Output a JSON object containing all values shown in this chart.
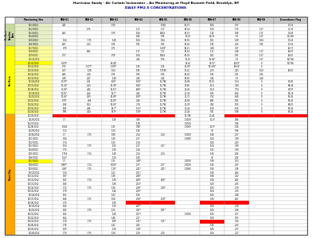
{
  "title1": "Hurricane Sandy - Air Curtain Incinerator – Air Monitoring at Floyd Bennett Field, Brooklyn, NY",
  "title3": "DAILY PM2.5 CONCENTRATIONS",
  "col_headers": [
    "Monitoring Site",
    "FBB-01",
    "FBB-02",
    "FBB-03",
    "FBB-04",
    "FBB-05",
    "FBB-06",
    "FBB-07",
    "FBB-08",
    "FBB-09",
    "Exceedance Flag"
  ],
  "preburn_label": "Pre-Burn\nBaseline",
  "burnday_label": "Burn Day",
  "color_preburn_top": "#c8d9a0",
  "color_preburn_side": "#ffff99",
  "color_burnday_side": "#ffaa00",
  "color_header_bg": "#c8c8c8",
  "color_red": "#ff0000",
  "color_white": "#ffffff",
  "color_alt": "#f0f0f0",
  "preburn_count": 18,
  "rows": [
    [
      "11/7/2012",
      "0.70",
      "",
      "0.71",
      "",
      "1.303*",
      "60.11",
      "4.28",
      "3.07",
      "",
      "62.71"
    ],
    [
      "11/8/2012",
      "",
      "0.83",
      "",
      "1.17",
      "1.17",
      "67.14",
      "1.17",
      "1.48",
      "1.17",
      "62.63"
    ],
    [
      "11/9/2012",
      "3.57",
      "",
      "0.79",
      "1.84",
      "0.654",
      "67.39",
      "1.61",
      "1.91",
      "1.17",
      "62.63"
    ],
    [
      "11/10/2012",
      "",
      "",
      "",
      "3.26",
      "1.95",
      "10.47",
      "15.03*",
      "1.9",
      "1.17",
      "102.98"
    ],
    [
      "11/11/2012",
      "0.119*",
      "",
      "44.44*",
      "",
      "",
      "15.61",
      "36.75*",
      "29.63*",
      "0",
      "107.88"
    ],
    [
      "11/12/2012",
      "0.72",
      "1.377*",
      "1.397*",
      "1.26",
      "1.26",
      "15.03*",
      "103.48*",
      "25.64*",
      "0",
      ""
    ],
    [
      "11/13/2012",
      "3.27",
      "1.28",
      "1.54",
      "1.95",
      "1.7536",
      "70.22",
      "2.13",
      "2.43",
      "1.54",
      "62.63"
    ],
    [
      "11/14/2012",
      "0.85",
      "4.19",
      "0.76",
      "1.95",
      "1.95",
      "67.44",
      "1.95",
      "1.91",
      "1.95",
      ""
    ],
    [
      "11/15/2012",
      "4.78",
      "4.37",
      "1.49",
      "3.26",
      "3.26",
      "67.56",
      "3.26",
      "1.9",
      "3.26",
      ""
    ],
    [
      "11/16/2012",
      "40.07*",
      "4.11",
      "6.20*",
      "5.20*",
      "11.796",
      "22.88",
      "10.52",
      "7.54",
      "0",
      "92.46"
    ],
    [
      "11/17/2012",
      "13.36*",
      "4.13",
      "11.38*",
      "6.40*",
      "11.796",
      "23.66",
      "11.9",
      "7.44",
      "0",
      "88.44"
    ],
    [
      "11/18/2012",
      "31.83*",
      "4.45",
      "16.51*",
      "6.80*",
      "11.796",
      "22.45",
      "11.8",
      "7.74",
      "0",
      "91.97"
    ],
    [
      "11/19/2012",
      "10.55*",
      "4.64",
      "16.7*",
      "4.32",
      "11.796",
      "21.34",
      "9.35",
      "6.44",
      "0",
      "87.24"
    ],
    [
      "11/20/2012",
      "10.45*",
      "4.59",
      "14.94*",
      "6.19*",
      "11.796",
      "21.71",
      "7.32",
      "6.44",
      "0",
      "87.45"
    ],
    [
      "11/21/2012",
      "9.79*",
      "4.66",
      "16.08*",
      "4.16",
      "11.796",
      "22.88",
      "6.66",
      "6.95",
      "0",
      "87.45"
    ],
    [
      "11/22/2012",
      "9.26",
      "4.53",
      "13.81*",
      "3.74",
      "11.796",
      "21.28",
      "4.92",
      "5.55",
      "0",
      "86.82"
    ],
    [
      "11/23/2012",
      "9.69",
      "4.36",
      "14.7*",
      "5.13*",
      "11.796",
      "21.45",
      "6.10",
      "6.15",
      "0",
      "87.45"
    ],
    [
      "11/24/2012",
      "9.95",
      "4.44",
      "14.9*",
      "5.18*",
      "11.796",
      "21.44",
      "5.41",
      "5.48",
      "0",
      "87.45"
    ],
    [
      "11/25/2012",
      "R",
      "R",
      "R",
      "R",
      "R",
      "11.796",
      "21.44",
      "R",
      "R",
      "R"
    ],
    [
      "11/26/2012",
      "1.7",
      "",
      "1.49",
      "3.88",
      "",
      "1.3059",
      "11.4*",
      "4.96",
      "",
      ""
    ],
    [
      "11/27/2012",
      "",
      "",
      "",
      "1.38",
      "",
      "1.3059",
      "",
      "1.96",
      "",
      ""
    ],
    [
      "11/28/2012",
      "1.843",
      "",
      "1.35",
      "3.96*",
      "",
      "1.3069",
      "11.9*",
      "5.16",
      "",
      ""
    ],
    [
      "11/29/2012",
      "1.13",
      "",
      "1.24",
      "1.36",
      "",
      "",
      "4.7",
      "1.96",
      "",
      ""
    ],
    [
      "11/30/2012",
      "1.7",
      "1.75",
      "1.88",
      "2.14",
      "2.14",
      "1.3059",
      "5.48",
      "2.17",
      "",
      ""
    ],
    [
      "12/1/2012",
      "1.84",
      "",
      "1.28",
      "2.17",
      "",
      "1.3069",
      "5.24",
      "3.89",
      "",
      ""
    ],
    [
      "12/2/2012",
      "1.74",
      "",
      "1.43",
      "2.14",
      "",
      "",
      "5.20",
      "2.43",
      "",
      ""
    ],
    [
      "12/3/2012",
      "1.54",
      "1.75",
      "1.56",
      "2.17",
      "2.17",
      "",
      "5.24",
      "3.89",
      "",
      ""
    ],
    [
      "12/4/2012",
      "1.75",
      "",
      "1.29",
      "2.14",
      "",
      "",
      "5.32",
      "3.89",
      "",
      ""
    ],
    [
      "12/5/2012",
      "1.754",
      "1.74",
      "1.49",
      "2.14",
      "2.14",
      "",
      "5.16",
      "2.56",
      "",
      ""
    ],
    [
      "12/6/2012",
      "1.54*",
      "",
      "1.20",
      "1.40",
      "",
      "",
      "4.7",
      "2.05",
      "",
      ""
    ],
    [
      "12/7/2012",
      "1.7",
      "",
      "1.33",
      "3.28*",
      "",
      "1.3059",
      "5.38",
      "2.53",
      "",
      ""
    ],
    [
      "12/8/2012",
      "0.987*",
      "1.74",
      "1.078*",
      "1.37",
      "1.37",
      "1.3059",
      "5.16",
      "2.37",
      "",
      ""
    ],
    [
      "12/9/2012",
      "4.18*",
      "1.75",
      "1.19*",
      "2.41*",
      "2.41*",
      "1.3069",
      "5.58",
      "3.06",
      "",
      ""
    ],
    [
      "12/10/2012",
      "1.34",
      "",
      "1.22",
      "2.51*",
      "",
      "",
      "5.40",
      "2.64",
      "",
      ""
    ],
    [
      "12/11/2012",
      "1.87",
      "",
      "1.38",
      "2.68*",
      "",
      "",
      "5.48",
      "3.22",
      "",
      ""
    ],
    [
      "12/12/2012",
      "1.63",
      "1.74",
      "1.39",
      "2.69*",
      "2.69*",
      "",
      "5.44",
      "2.62",
      "",
      ""
    ],
    [
      "12/13/2012",
      "1.68",
      "",
      "1.36",
      "2.53*",
      "",
      "",
      "5.20",
      "2.05",
      "",
      ""
    ],
    [
      "12/14/2012",
      "1.72",
      "1.75",
      "1.38",
      "2.89*",
      "2.89*",
      "",
      "5.20",
      "2.79",
      "",
      ""
    ],
    [
      "12/15/2012",
      "1.70",
      "",
      "1.46",
      "2.50*",
      "",
      "",
      "5.24",
      "2.15",
      "",
      ""
    ],
    [
      "12/16/2012",
      "1.63",
      "",
      "1.43",
      "1.56",
      "",
      "",
      "5.20",
      "2.48",
      "",
      ""
    ],
    [
      "12/17/2012",
      "1.68",
      "1.75",
      "1.58",
      "2.58*",
      "2.58*",
      "",
      "5.44",
      "2.62",
      "",
      ""
    ],
    [
      "12/18/2012",
      "1.75",
      "",
      "1.49",
      "R",
      "R",
      "",
      "R",
      "R",
      "",
      ""
    ],
    [
      "12/19/2012",
      "1.64",
      "",
      "1.39",
      "2.67*",
      "",
      "",
      "5.20",
      "2.78",
      "",
      ""
    ],
    [
      "12/20/2012",
      "1.65",
      "1.75",
      "1.35",
      "2.97*",
      "2.97*",
      "",
      "5.20",
      "3.28",
      "",
      ""
    ],
    [
      "12/21/2012",
      "1.64",
      "",
      "1.40",
      "2.57*",
      "",
      "1.3059",
      "5.20",
      "2.17",
      "",
      ""
    ],
    [
      "12/22/2012",
      "1.64",
      "",
      "1.48",
      "2.17",
      "",
      "",
      "5.20",
      "1.97",
      "",
      ""
    ],
    [
      "12/23/2012",
      "1.70",
      "1.75",
      "1.69",
      "3.01*",
      "3.01*",
      "",
      "R",
      "3.10",
      "",
      ""
    ],
    [
      "12/24/2012",
      "1.76",
      "",
      "1.42",
      "2.04",
      "",
      "",
      "5.16",
      "2.32",
      "",
      ""
    ],
    [
      "12/25/2012",
      "1.69",
      "",
      "1.39",
      "3.19*",
      "",
      "",
      "5.28",
      "2.17",
      "",
      ""
    ],
    [
      "12/26/2012",
      "1.70",
      "1.75",
      "1.38",
      "2.19",
      "2.19",
      "",
      "5.20",
      "2.17",
      "",
      ""
    ]
  ],
  "preburn_top_rows": [
    [
      "11/1/2012",
      "4.41",
      "",
      "5.70",
      "",
      "1.381",
      "65.17",
      "6.24",
      "3.37",
      "",
      "70.14"
    ],
    [
      "11/2/2012",
      "",
      "0.75",
      "",
      "1.17",
      "1.17",
      "67.14",
      "1.29",
      "1.75",
      "1.17",
      "71.30"
    ],
    [
      "11/3/2012",
      "0.83",
      "",
      "0.79",
      "1.84",
      "0.654",
      "67.33",
      "1.16",
      "1.08",
      "1.17",
      "70.84"
    ],
    [
      "11/4/2012",
      "",
      "",
      "",
      "5.26",
      "1.95",
      "10.47",
      "22.53",
      "1.9",
      "1.17",
      "111.98"
    ],
    [
      "11/5/2012",
      "1.54",
      "1.75",
      "1.49",
      "1.84",
      "1.84",
      "67.39",
      "1.61",
      "1.49",
      "1.84",
      "70.24"
    ],
    [
      "11/6/2012",
      "0.87",
      "4.13",
      "0.76",
      "1.95",
      "1.95",
      "67.44",
      "1.95",
      "2.35",
      "1.95",
      "70.54"
    ]
  ]
}
